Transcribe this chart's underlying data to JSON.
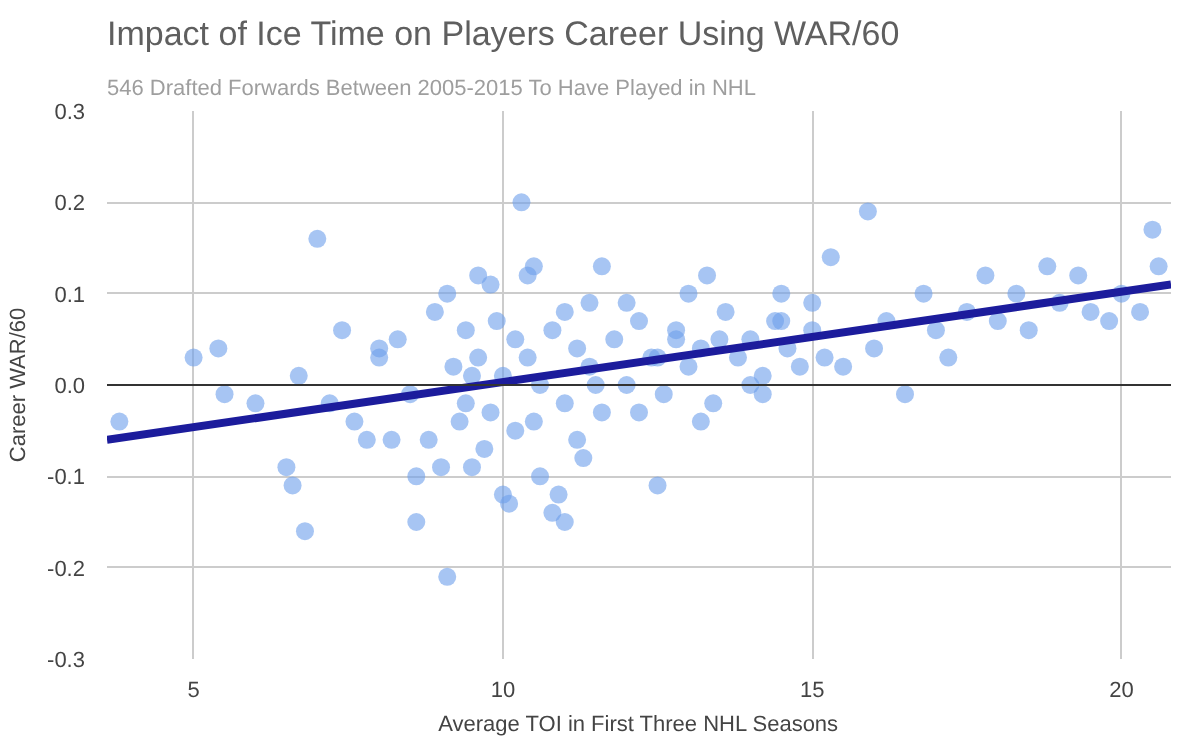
{
  "chart_data": {
    "type": "scatter",
    "title": "Impact of Ice Time on Players Career Using WAR/60",
    "subtitle": "546 Drafted Forwards Between 2005-2015 To Have Played in NHL",
    "xlabel": "Average TOI in First Three NHL Seasons",
    "ylabel": "Career WAR/60",
    "xlim": [
      3.6,
      20.8
    ],
    "xticks": [
      5,
      10,
      15,
      20
    ],
    "ylim": [
      -0.3,
      0.3
    ],
    "yticks": [
      -0.3,
      -0.2,
      -0.1,
      {
        "value": 0,
        "label": "0.0"
      },
      0.1,
      0.2,
      0.3
    ],
    "grid": true,
    "ref_lines": [
      {
        "axis": "y",
        "value": 0,
        "label": null,
        "color": "#333333"
      }
    ],
    "series": [
      {
        "marker": "circle",
        "color": "#6d9eeb",
        "x": [
          3.8,
          5.0,
          5.4,
          5.5,
          6.0,
          6.5,
          6.6,
          6.7,
          6.8,
          7.0,
          7.2,
          7.4,
          7.6,
          7.8,
          8.0,
          8.0,
          8.2,
          8.3,
          8.5,
          8.6,
          8.6,
          8.8,
          8.9,
          9.0,
          9.1,
          9.1,
          9.3,
          9.4,
          9.5,
          9.5,
          9.6,
          9.7,
          9.8,
          9.9,
          10.0,
          10.1,
          10.2,
          10.3,
          10.4,
          10.5,
          10.6,
          10.8,
          10.9,
          11.0,
          11.3,
          11.4,
          11.6,
          12.5,
          9.2,
          9.4,
          9.6,
          9.8,
          10.0,
          10.2,
          10.4,
          10.6,
          10.8,
          11.0,
          11.2,
          11.4,
          11.6,
          11.8,
          12.0,
          12.2,
          12.4,
          12.6,
          12.8,
          13.0,
          13.2,
          13.4,
          13.6,
          13.8,
          14.0,
          14.2,
          14.4,
          14.6,
          14.8,
          15.0,
          10.5,
          11.0,
          11.5,
          12.0,
          12.5,
          13.0,
          13.5,
          14.0,
          14.5,
          15.0,
          15.5,
          11.2,
          12.2,
          13.2,
          14.2,
          15.2,
          16.0,
          16.2,
          16.5,
          16.8,
          17.0,
          17.2,
          17.5,
          17.8,
          18.0,
          18.3,
          18.5,
          18.8,
          19.0,
          19.3,
          19.5,
          19.8,
          20.0,
          20.3,
          20.5,
          20.6,
          15.9,
          14.5,
          13.3,
          12.8,
          15.3
        ],
        "values": [
          -0.04,
          0.03,
          0.04,
          -0.01,
          -0.02,
          -0.09,
          -0.11,
          0.01,
          -0.16,
          0.16,
          -0.02,
          0.06,
          -0.04,
          -0.06,
          0.04,
          0.03,
          -0.06,
          0.05,
          -0.01,
          -0.1,
          -0.15,
          -0.06,
          0.08,
          -0.09,
          -0.21,
          0.1,
          -0.04,
          0.06,
          -0.09,
          0.01,
          0.12,
          -0.07,
          0.11,
          0.07,
          -0.12,
          -0.13,
          0.05,
          0.2,
          0.12,
          0.13,
          -0.1,
          -0.14,
          -0.12,
          -0.15,
          -0.08,
          0.09,
          0.13,
          -0.11,
          0.02,
          -0.02,
          0.03,
          -0.03,
          0.01,
          -0.05,
          0.03,
          0.0,
          0.06,
          -0.02,
          0.04,
          0.02,
          -0.03,
          0.05,
          0.0,
          0.07,
          0.03,
          -0.01,
          0.06,
          0.02,
          0.04,
          -0.02,
          0.08,
          0.03,
          0.05,
          0.01,
          0.07,
          0.04,
          0.02,
          0.06,
          -0.04,
          0.08,
          0.0,
          0.09,
          0.03,
          0.1,
          0.05,
          0.0,
          0.07,
          0.09,
          0.02,
          -0.06,
          -0.03,
          -0.04,
          -0.01,
          0.03,
          0.04,
          0.07,
          -0.01,
          0.1,
          0.06,
          0.03,
          0.08,
          0.12,
          0.07,
          0.1,
          0.06,
          0.13,
          0.09,
          0.12,
          0.08,
          0.07,
          0.1,
          0.08,
          0.17,
          0.13,
          0.19,
          0.1,
          0.12,
          0.05,
          0.14
        ]
      },
      {
        "type": "line",
        "color": "#1c1c9c",
        "x": [
          3.6,
          20.8
        ],
        "values": [
          -0.06,
          0.11
        ]
      }
    ]
  }
}
